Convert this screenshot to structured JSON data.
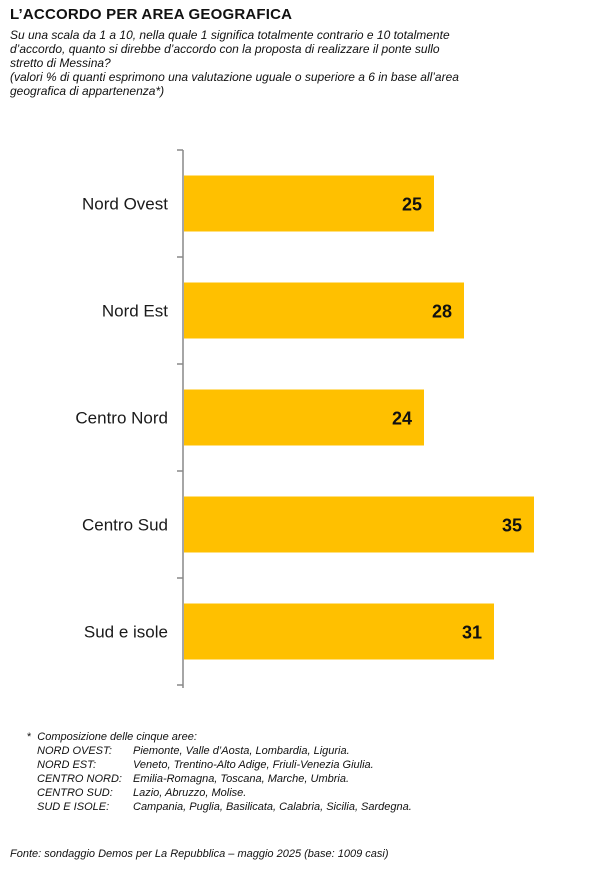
{
  "header": {
    "title": "L’ACCORDO PER AREA GEOGRAFICA",
    "question_lines": [
      "Su una scala da 1 a 10, nella quale 1 significa totalmente contrario e 10 totalmente",
      "d’accordo, quanto si direbbe d’accordo con la proposta di realizzare il ponte sullo",
      "stretto di Messina?",
      "(valori % di quanti esprimono una valutazione uguale o superiore a 6 in base all’area",
      "geografica di appartenenza*)"
    ]
  },
  "chart_data": {
    "type": "bar",
    "orientation": "horizontal",
    "categories": [
      "Nord Ovest",
      "Nord Est",
      "Centro Nord",
      "Centro Sud",
      "Sud e isole"
    ],
    "values": [
      25,
      28,
      24,
      35,
      31
    ],
    "xlim": [
      0,
      40
    ],
    "grid": false,
    "colors": {
      "bar": "#FFC000",
      "axis": "#888888"
    }
  },
  "footnote": {
    "marker": "*",
    "intro": "Composizione delle cinque aree:",
    "rows": [
      {
        "key": "NORD OVEST:",
        "value": "Piemonte, Valle d’Aosta, Lombardia, Liguria."
      },
      {
        "key": "NORD EST:",
        "value": "Veneto, Trentino-Alto Adige, Friuli-Venezia Giulia."
      },
      {
        "key": "CENTRO NORD:",
        "value": "Emilia-Romagna, Toscana, Marche, Umbria."
      },
      {
        "key": "CENTRO SUD:",
        "value": "Lazio, Abruzzo, Molise."
      },
      {
        "key": "SUD E ISOLE:",
        "value": "Campania, Puglia, Basilicata, Calabria, Sicilia, Sardegna."
      }
    ]
  },
  "source": "Fonte: sondaggio Demos per La Repubblica – maggio 2025 (base: 1009 casi)"
}
